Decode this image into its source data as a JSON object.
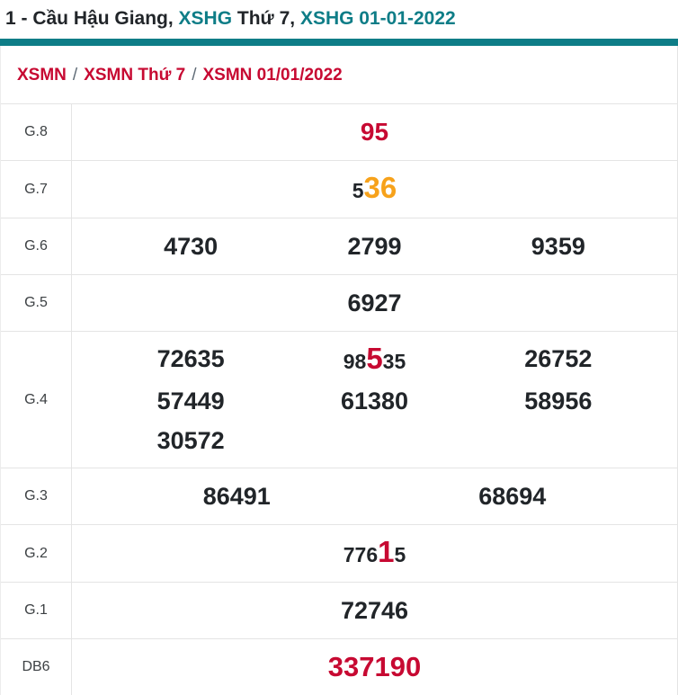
{
  "title": {
    "part1": "1 - Cầu Hậu Giang, ",
    "link1": "XSHG",
    "part2": " Thứ 7, ",
    "link2": "XSHG 01-01-2022"
  },
  "breadcrumb": {
    "separator": "/",
    "items": [
      "XSMN",
      "XSMN Thứ 7",
      "XSMN 01/01/2022"
    ]
  },
  "colors": {
    "teal": "#0e7d87",
    "red": "#c70932",
    "orange": "#f7a21b",
    "text": "#212529",
    "border": "#e4e4e4"
  },
  "table": {
    "rows": [
      {
        "label": "G.8",
        "cols": 1,
        "values": [
          [
            {
              "text": "95",
              "style": "red-full"
            }
          ]
        ]
      },
      {
        "label": "G.7",
        "cols": 1,
        "values": [
          [
            {
              "text": "5",
              "style": "dim"
            },
            {
              "text": "36",
              "style": "orange"
            }
          ]
        ]
      },
      {
        "label": "G.6",
        "cols": 3,
        "values": [
          [
            {
              "text": "4730",
              "style": "base"
            }
          ],
          [
            {
              "text": "2799",
              "style": "base"
            }
          ],
          [
            {
              "text": "9359",
              "style": "base"
            }
          ]
        ]
      },
      {
        "label": "G.5",
        "cols": 1,
        "values": [
          [
            {
              "text": "6927",
              "style": "base"
            }
          ]
        ]
      },
      {
        "label": "G.4",
        "cols": 3,
        "values": [
          [
            {
              "text": "72635",
              "style": "base"
            }
          ],
          [
            {
              "text": "98",
              "style": "dim"
            },
            {
              "text": "5",
              "style": "red"
            },
            {
              "text": "35",
              "style": "dim"
            }
          ],
          [
            {
              "text": "26752",
              "style": "base"
            }
          ],
          [
            {
              "text": "57449",
              "style": "base"
            }
          ],
          [
            {
              "text": "61380",
              "style": "base"
            }
          ],
          [
            {
              "text": "58956",
              "style": "base"
            }
          ],
          [
            {
              "text": "30572",
              "style": "base"
            }
          ]
        ]
      },
      {
        "label": "G.3",
        "cols": 2,
        "values": [
          [
            {
              "text": "86491",
              "style": "base"
            }
          ],
          [
            {
              "text": "68694",
              "style": "base"
            }
          ]
        ]
      },
      {
        "label": "G.2",
        "cols": 1,
        "values": [
          [
            {
              "text": "776",
              "style": "dim"
            },
            {
              "text": "1",
              "style": "red"
            },
            {
              "text": "5",
              "style": "dim"
            }
          ]
        ]
      },
      {
        "label": "G.1",
        "cols": 1,
        "values": [
          [
            {
              "text": "72746",
              "style": "base"
            }
          ]
        ]
      },
      {
        "label": "DB6",
        "cols": 1,
        "values": [
          [
            {
              "text": "337190",
              "style": "red-db"
            }
          ]
        ]
      }
    ]
  }
}
